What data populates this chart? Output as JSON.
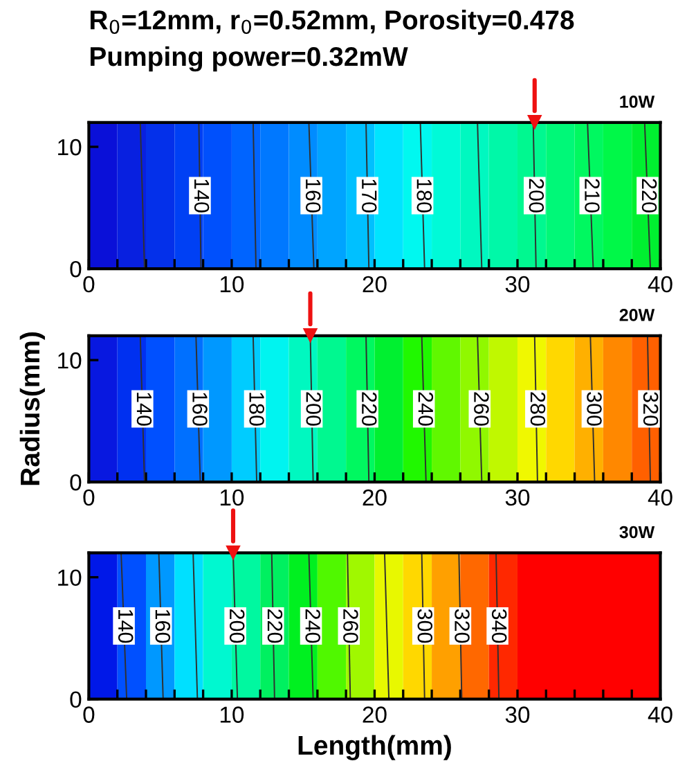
{
  "chart_data": [
    {
      "type": "line",
      "title": "R$_{0}$=12mm, r$_{0}$=0.52mm, Porosity=0.478",
      "subtitle": "Pumping power=0.32mW",
      "annotations": [
        "10W"
      ],
      "xlim": [
        0,
        40
      ],
      "ylim": [
        0,
        12
      ],
      "xticks": [
        0,
        {
          "value": 2,
          "label": null
        },
        {
          "value": 4,
          "label": null
        },
        {
          "value": 6,
          "label": null
        },
        {
          "value": 8,
          "label": null
        },
        10,
        {
          "value": 12,
          "label": null
        },
        {
          "value": 14,
          "label": null
        },
        {
          "value": 16,
          "label": null
        },
        {
          "value": 18,
          "label": null
        },
        20,
        {
          "value": 22,
          "label": null
        },
        {
          "value": 24,
          "label": null
        },
        {
          "value": 26,
          "label": null
        },
        {
          "value": 28,
          "label": null
        },
        30,
        {
          "value": 32,
          "label": null
        },
        {
          "value": 34,
          "label": null
        },
        {
          "value": 36,
          "label": null
        },
        {
          "value": 38,
          "label": null
        },
        40
      ],
      "yticks": [
        0,
        10
      ],
      "grid": false,
      "legend": false,
      "bands": [
        {
          "axis": "x",
          "from": 0,
          "to": 2,
          "color": "#0a10d8"
        },
        {
          "axis": "x",
          "from": 2,
          "to": 4,
          "color": "#0820e0"
        },
        {
          "axis": "x",
          "from": 4,
          "to": 6,
          "color": "#0430ea"
        },
        {
          "axis": "x",
          "from": 6,
          "to": 8,
          "color": "#0040f4"
        },
        {
          "axis": "x",
          "from": 8,
          "to": 10,
          "color": "#0050fc"
        },
        {
          "axis": "x",
          "from": 10,
          "to": 12,
          "color": "#0064ff"
        },
        {
          "axis": "x",
          "from": 12,
          "to": 14,
          "color": "#0078ff"
        },
        {
          "axis": "x",
          "from": 14,
          "to": 16,
          "color": "#008cff"
        },
        {
          "axis": "x",
          "from": 16,
          "to": 18,
          "color": "#00a4ff"
        },
        {
          "axis": "x",
          "from": 18,
          "to": 20,
          "color": "#00c0ff"
        },
        {
          "axis": "x",
          "from": 20,
          "to": 22,
          "color": "#00e4ff"
        },
        {
          "axis": "x",
          "from": 22,
          "to": 24,
          "color": "#00f8f0"
        },
        {
          "axis": "x",
          "from": 24,
          "to": 26,
          "color": "#00fad8"
        },
        {
          "axis": "x",
          "from": 26,
          "to": 28,
          "color": "#00f8c0"
        },
        {
          "axis": "x",
          "from": 28,
          "to": 30,
          "color": "#00f8a8"
        },
        {
          "axis": "x",
          "from": 30,
          "to": 32,
          "color": "#00f890"
        },
        {
          "axis": "x",
          "from": 32,
          "to": 34,
          "color": "#00f878"
        },
        {
          "axis": "x",
          "from": 34,
          "to": 36,
          "color": "#00f860"
        },
        {
          "axis": "x",
          "from": 36,
          "to": 38,
          "color": "#00f848"
        },
        {
          "axis": "x",
          "from": 38,
          "to": 40,
          "color": "#00f030"
        }
      ],
      "series": [
        {
          "x": [
            3.6,
            3.9
          ],
          "values": [
            12,
            0
          ],
          "color": "#303030"
        },
        {
          "name": "140",
          "x": [
            7.7,
            7.85
          ],
          "values": [
            12,
            0
          ],
          "color": "#303030"
        },
        {
          "x": [
            11.5,
            11.7
          ],
          "values": [
            12,
            0
          ],
          "color": "#303030"
        },
        {
          "name": "160",
          "x": [
            15.4,
            15.75
          ],
          "values": [
            12,
            0
          ],
          "color": "#303030"
        },
        {
          "name": "170",
          "x": [
            19.4,
            19.6
          ],
          "values": [
            12,
            0
          ],
          "color": "#303030"
        },
        {
          "name": "180",
          "x": [
            23.2,
            23.5
          ],
          "values": [
            12,
            0
          ],
          "color": "#303030"
        },
        {
          "x": [
            27.2,
            27.5
          ],
          "values": [
            12,
            0
          ],
          "color": "#303030"
        },
        {
          "name": "200",
          "x": [
            31.1,
            31.3
          ],
          "values": [
            12,
            0
          ],
          "color": "#303030"
        },
        {
          "name": "210",
          "x": [
            34.9,
            35.3
          ],
          "values": [
            12,
            0
          ],
          "color": "#303030"
        },
        {
          "name": "220",
          "x": [
            38.9,
            39.3
          ],
          "values": [
            12,
            0
          ],
          "color": "#303030"
        },
        {
          "type": "scatter",
          "x": [
            31.2
          ],
          "values": [
            12
          ],
          "color": "#ee1111",
          "marker": "triangle"
        }
      ]
    },
    {
      "type": "line",
      "ylabel": "Radius(mm)",
      "annotations": [
        "20W"
      ],
      "xlim": [
        0,
        40
      ],
      "ylim": [
        0,
        12
      ],
      "xticks": [
        0,
        {
          "value": 2,
          "label": null
        },
        {
          "value": 4,
          "label": null
        },
        {
          "value": 6,
          "label": null
        },
        {
          "value": 8,
          "label": null
        },
        10,
        {
          "value": 12,
          "label": null
        },
        {
          "value": 14,
          "label": null
        },
        {
          "value": 16,
          "label": null
        },
        {
          "value": 18,
          "label": null
        },
        20,
        {
          "value": 22,
          "label": null
        },
        {
          "value": 24,
          "label": null
        },
        {
          "value": 26,
          "label": null
        },
        {
          "value": 28,
          "label": null
        },
        30,
        {
          "value": 32,
          "label": null
        },
        {
          "value": 34,
          "label": null
        },
        {
          "value": 36,
          "label": null
        },
        {
          "value": 38,
          "label": null
        },
        40
      ],
      "yticks": [
        0,
        10
      ],
      "grid": false,
      "legend": false,
      "bands": [
        {
          "axis": "x",
          "from": 0,
          "to": 2,
          "color": "#0818e0"
        },
        {
          "axis": "x",
          "from": 2,
          "to": 4,
          "color": "#0030f0"
        },
        {
          "axis": "x",
          "from": 4,
          "to": 6,
          "color": "#0050ff"
        },
        {
          "axis": "x",
          "from": 6,
          "to": 8,
          "color": "#0070ff"
        },
        {
          "axis": "x",
          "from": 8,
          "to": 10,
          "color": "#0098ff"
        },
        {
          "axis": "x",
          "from": 10,
          "to": 12,
          "color": "#00ccff"
        },
        {
          "axis": "x",
          "from": 12,
          "to": 14,
          "color": "#00f4f0"
        },
        {
          "axis": "x",
          "from": 14,
          "to": 16,
          "color": "#00f8c0"
        },
        {
          "axis": "x",
          "from": 16,
          "to": 18,
          "color": "#00f890"
        },
        {
          "axis": "x",
          "from": 18,
          "to": 20,
          "color": "#00f860"
        },
        {
          "axis": "x",
          "from": 20,
          "to": 22,
          "color": "#00f030"
        },
        {
          "axis": "x",
          "from": 22,
          "to": 24,
          "color": "#20f800"
        },
        {
          "axis": "x",
          "from": 24,
          "to": 26,
          "color": "#60f800"
        },
        {
          "axis": "x",
          "from": 26,
          "to": 28,
          "color": "#90f800"
        },
        {
          "axis": "x",
          "from": 28,
          "to": 30,
          "color": "#c0f800"
        },
        {
          "axis": "x",
          "from": 30,
          "to": 32,
          "color": "#f0f800"
        },
        {
          "axis": "x",
          "from": 32,
          "to": 34,
          "color": "#ffd800"
        },
        {
          "axis": "x",
          "from": 34,
          "to": 36,
          "color": "#ffb000"
        },
        {
          "axis": "x",
          "from": 36,
          "to": 38,
          "color": "#ff8800"
        },
        {
          "axis": "x",
          "from": 38,
          "to": 40,
          "color": "#ff6000"
        }
      ],
      "series": [
        {
          "name": "140",
          "x": [
            3.6,
            3.9
          ],
          "values": [
            12,
            0
          ],
          "color": "#303030"
        },
        {
          "name": "160",
          "x": [
            7.5,
            7.8
          ],
          "values": [
            12,
            0
          ],
          "color": "#303030"
        },
        {
          "name": "180",
          "x": [
            11.5,
            11.75
          ],
          "values": [
            12,
            0
          ],
          "color": "#303030"
        },
        {
          "name": "200",
          "x": [
            15.5,
            15.7
          ],
          "values": [
            12,
            0
          ],
          "color": "#303030"
        },
        {
          "name": "220",
          "x": [
            19.4,
            19.6
          ],
          "values": [
            12,
            0
          ],
          "color": "#303030"
        },
        {
          "name": "240",
          "x": [
            23.3,
            23.6
          ],
          "values": [
            12,
            0
          ],
          "color": "#303030"
        },
        {
          "name": "260",
          "x": [
            27.2,
            27.5
          ],
          "values": [
            12,
            0
          ],
          "color": "#303030"
        },
        {
          "name": "280",
          "x": [
            31.2,
            31.4
          ],
          "values": [
            12,
            0
          ],
          "color": "#303030"
        },
        {
          "name": "300",
          "x": [
            35.1,
            35.4
          ],
          "values": [
            12,
            0
          ],
          "color": "#303030"
        },
        {
          "name": "320",
          "x": [
            39.1,
            39.3
          ],
          "values": [
            12,
            0
          ],
          "color": "#303030"
        },
        {
          "type": "scatter",
          "x": [
            15.5
          ],
          "values": [
            12
          ],
          "color": "#ee1111",
          "marker": "triangle"
        }
      ]
    },
    {
      "type": "line",
      "xlabel": "Length(mm)",
      "annotations": [
        "30W"
      ],
      "xlim": [
        0,
        40
      ],
      "ylim": [
        0,
        12
      ],
      "xticks": [
        0,
        {
          "value": 2,
          "label": null
        },
        {
          "value": 4,
          "label": null
        },
        {
          "value": 6,
          "label": null
        },
        {
          "value": 8,
          "label": null
        },
        10,
        {
          "value": 12,
          "label": null
        },
        {
          "value": 14,
          "label": null
        },
        {
          "value": 16,
          "label": null
        },
        {
          "value": 18,
          "label": null
        },
        20,
        {
          "value": 22,
          "label": null
        },
        {
          "value": 24,
          "label": null
        },
        {
          "value": 26,
          "label": null
        },
        {
          "value": 28,
          "label": null
        },
        30,
        {
          "value": 32,
          "label": null
        },
        {
          "value": 34,
          "label": null
        },
        {
          "value": 36,
          "label": null
        },
        {
          "value": 38,
          "label": null
        },
        40
      ],
      "yticks": [
        0,
        10
      ],
      "grid": false,
      "legend": false,
      "bands": [
        {
          "axis": "x",
          "from": 0,
          "to": 2,
          "color": "#0018e8"
        },
        {
          "axis": "x",
          "from": 2,
          "to": 4,
          "color": "#0050ff"
        },
        {
          "axis": "x",
          "from": 4,
          "to": 6,
          "color": "#0098ff"
        },
        {
          "axis": "x",
          "from": 6,
          "to": 8,
          "color": "#00e0ff"
        },
        {
          "axis": "x",
          "from": 8,
          "to": 10,
          "color": "#00f8d0"
        },
        {
          "axis": "x",
          "from": 10,
          "to": 12,
          "color": "#00f8a0"
        },
        {
          "axis": "x",
          "from": 12,
          "to": 14,
          "color": "#00f060"
        },
        {
          "axis": "x",
          "from": 14,
          "to": 16,
          "color": "#00f020"
        },
        {
          "axis": "x",
          "from": 16,
          "to": 18,
          "color": "#50f800"
        },
        {
          "axis": "x",
          "from": 18,
          "to": 20,
          "color": "#a0f800"
        },
        {
          "axis": "x",
          "from": 20,
          "to": 22,
          "color": "#e8f800"
        },
        {
          "axis": "x",
          "from": 22,
          "to": 24,
          "color": "#ffd800"
        },
        {
          "axis": "x",
          "from": 24,
          "to": 26,
          "color": "#ffa000"
        },
        {
          "axis": "x",
          "from": 26,
          "to": 28,
          "color": "#ff6800"
        },
        {
          "axis": "x",
          "from": 28,
          "to": 30,
          "color": "#ff2800"
        },
        {
          "axis": "x",
          "from": 30,
          "to": 40,
          "color": "#ff0000"
        }
      ],
      "series": [
        {
          "name": "140",
          "x": [
            2.26,
            2.65
          ],
          "values": [
            12,
            0
          ],
          "color": "#303030"
        },
        {
          "name": "160",
          "x": [
            4.9,
            5.2
          ],
          "values": [
            12,
            0
          ],
          "color": "#303030"
        },
        {
          "x": [
            7.3,
            7.6
          ],
          "values": [
            12,
            0
          ],
          "color": "#303030"
        },
        {
          "name": "200",
          "x": [
            10.1,
            10.4
          ],
          "values": [
            12,
            0
          ],
          "color": "#303030"
        },
        {
          "name": "220",
          "x": [
            12.8,
            13.0
          ],
          "values": [
            12,
            0
          ],
          "color": "#303030"
        },
        {
          "name": "240",
          "x": [
            15.4,
            15.7
          ],
          "values": [
            12,
            0
          ],
          "color": "#303030"
        },
        {
          "name": "260",
          "x": [
            18.1,
            18.3
          ],
          "values": [
            12,
            0
          ],
          "color": "#303030"
        },
        {
          "x": [
            20.7,
            21.0
          ],
          "values": [
            12,
            0
          ],
          "color": "#303030"
        },
        {
          "name": "300",
          "x": [
            23.3,
            23.5
          ],
          "values": [
            12,
            0
          ],
          "color": "#303030"
        },
        {
          "name": "320",
          "x": [
            25.9,
            26.1
          ],
          "values": [
            12,
            0
          ],
          "color": "#303030"
        },
        {
          "name": "340",
          "x": [
            28.5,
            28.7
          ],
          "values": [
            12,
            0
          ],
          "color": "#303030"
        },
        {
          "type": "scatter",
          "x": [
            10.1
          ],
          "values": [
            12
          ],
          "color": "#ee1111",
          "marker": "triangle"
        }
      ]
    }
  ]
}
